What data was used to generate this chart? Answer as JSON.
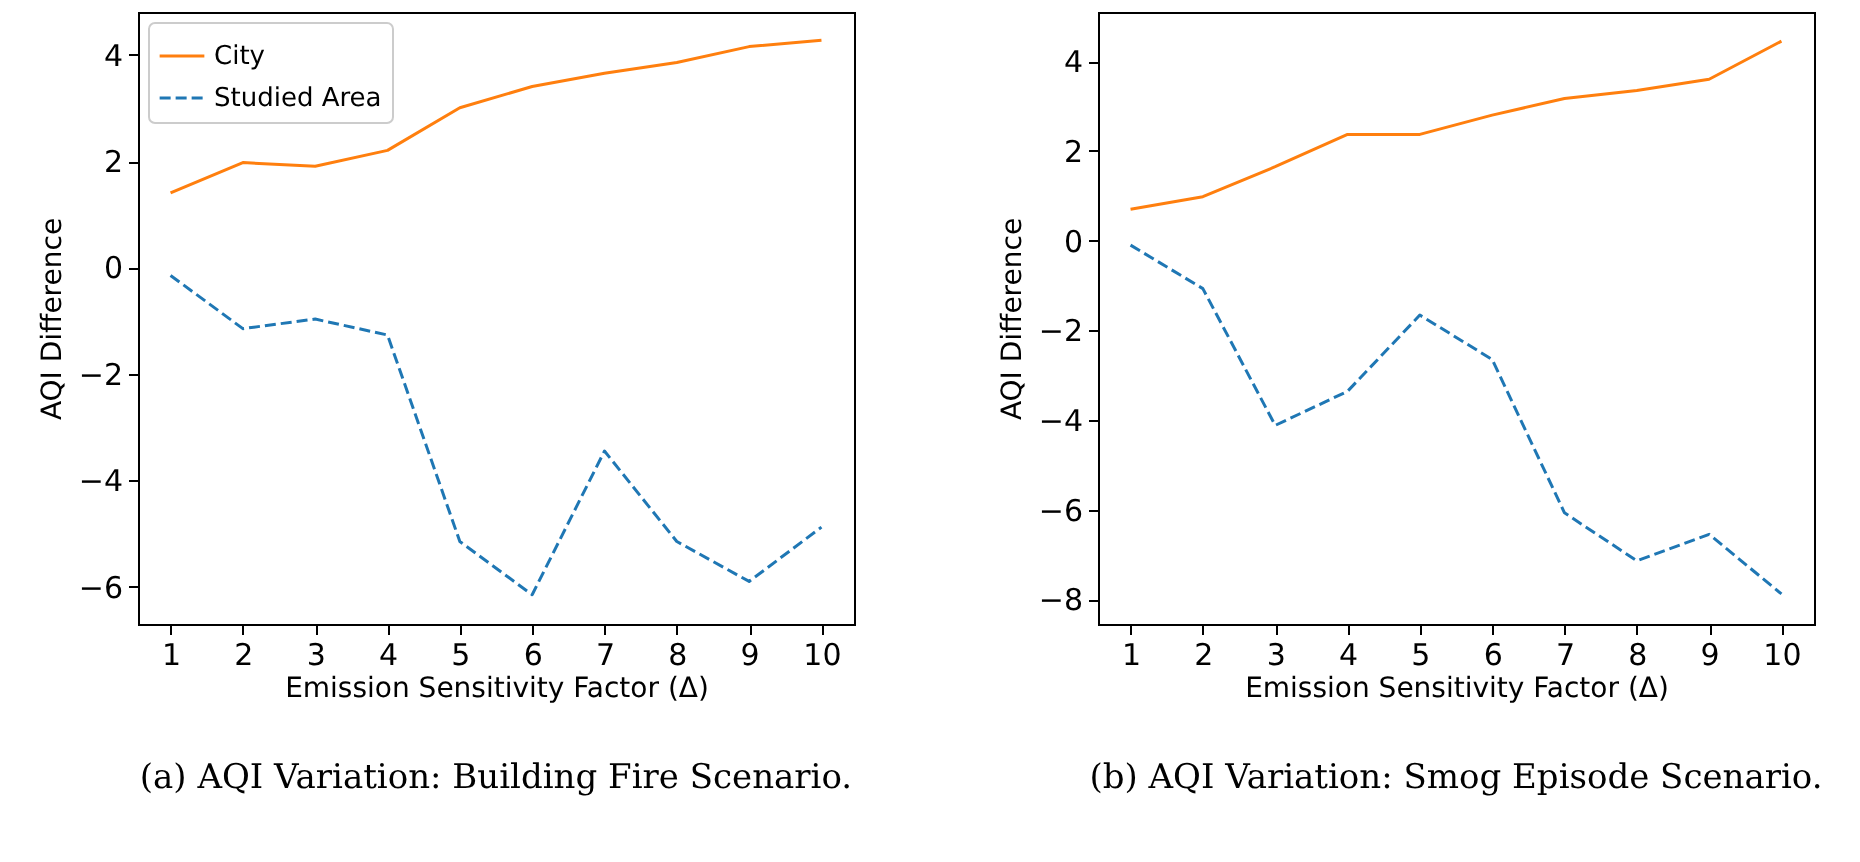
{
  "chart_data": [
    {
      "type": "line",
      "x": [
        1,
        2,
        3,
        4,
        5,
        6,
        7,
        8,
        9,
        10
      ],
      "xlabel": "Emission Sensitivity Factor (Δ)",
      "ylabel": "AQI Difference",
      "xlim": [
        0.55,
        10.45
      ],
      "xticks": [
        1,
        2,
        3,
        4,
        5,
        6,
        7,
        8,
        9,
        10
      ],
      "ylim": [
        -6.7,
        4.8
      ],
      "yticks": [
        -6,
        -4,
        -2,
        0,
        2,
        4
      ],
      "legend": "top left",
      "annotations": [
        "(a) AQI Variation: Building Fire Scenario."
      ],
      "series": [
        {
          "name": "City",
          "color": "#ff7f0e",
          "line_style": "solid",
          "values": [
            1.4,
            1.97,
            1.9,
            2.2,
            3.0,
            3.4,
            3.65,
            3.85,
            4.15,
            4.27
          ]
        },
        {
          "name": "Studied Area",
          "color": "#1f77b4",
          "line_style": "dashed",
          "values": [
            -0.15,
            -1.15,
            -0.97,
            -1.27,
            -5.15,
            -6.15,
            -3.45,
            -5.15,
            -5.9,
            -4.88
          ]
        }
      ]
    },
    {
      "type": "line",
      "x": [
        1,
        2,
        3,
        4,
        5,
        6,
        7,
        8,
        9,
        10
      ],
      "xlabel": "Emission Sensitivity Factor (Δ)",
      "ylabel": "AQI Difference",
      "xlim": [
        0.55,
        10.45
      ],
      "xticks": [
        1,
        2,
        3,
        4,
        5,
        6,
        7,
        8,
        9,
        10
      ],
      "ylim": [
        -8.55,
        5.1
      ],
      "yticks": [
        -8,
        -6,
        -4,
        -2,
        0,
        2,
        4
      ],
      "legend": "top left",
      "annotations": [
        "(b) AQI Variation: Smog Episode Scenario."
      ],
      "series": [
        {
          "name": "City",
          "color": "#ff7f0e",
          "line_style": "solid",
          "values": [
            0.7,
            0.98,
            1.65,
            2.37,
            2.37,
            2.8,
            3.17,
            3.35,
            3.6,
            4.45
          ]
        },
        {
          "name": "Studied Area",
          "color": "#1f77b4",
          "line_style": "dashed",
          "values": [
            -0.1,
            -1.07,
            -4.12,
            -3.36,
            -1.66,
            -2.65,
            -6.07,
            -7.14,
            -6.55,
            -7.88
          ]
        }
      ]
    }
  ]
}
